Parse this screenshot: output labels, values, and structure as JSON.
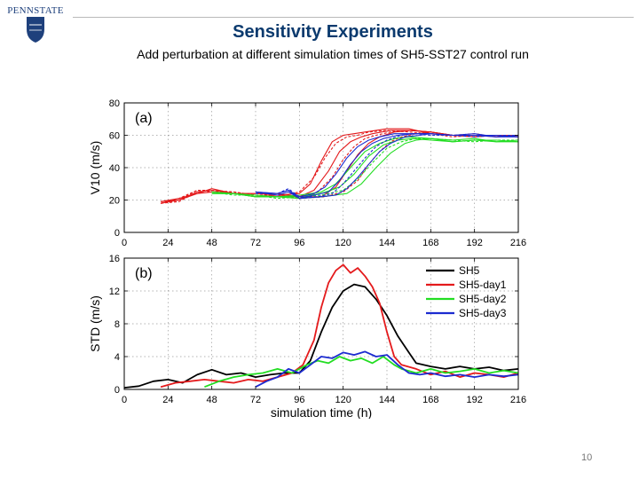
{
  "header": {
    "logo_text": "PENNSTATE",
    "title": "Sensitivity Experiments",
    "subtitle": "Add perturbation at different simulation times of SH5-SST27 control run"
  },
  "footer": {
    "page_number": "10"
  },
  "colors": {
    "title": "#0b3a6e",
    "logo": "#1e407c",
    "SH5": "#000000",
    "SH5-day1": "#e41a1c",
    "SH5-day2": "#22dd22",
    "SH5-day3": "#1c2bd0"
  },
  "chart_data": [
    {
      "type": "line",
      "panel_label": "(a)",
      "title": "",
      "xlabel": "",
      "ylabel": "V10 (m/s)",
      "xlim": [
        0,
        216
      ],
      "ylim": [
        0,
        80
      ],
      "xticks": [
        0,
        24,
        48,
        72,
        96,
        120,
        144,
        168,
        192,
        216
      ],
      "yticks": [
        0,
        20,
        40,
        60,
        80
      ],
      "grid": true,
      "series": [
        {
          "group": "SH5-day1",
          "style": "solid",
          "x": [
            20,
            30,
            40,
            48,
            60,
            72,
            84,
            96,
            102,
            108,
            114,
            120,
            126,
            132,
            144,
            156,
            168,
            180,
            192,
            204,
            216
          ],
          "y": [
            18,
            20,
            25,
            26,
            24,
            24,
            23,
            24,
            30,
            44,
            56,
            60,
            61,
            62,
            64,
            64,
            61,
            60,
            60,
            59,
            60
          ]
        },
        {
          "group": "SH5-day1",
          "style": "dashed",
          "x": [
            20,
            30,
            40,
            48,
            60,
            72,
            84,
            96,
            104,
            110,
            116,
            122,
            128,
            134,
            144,
            156,
            168,
            180,
            192,
            204,
            216
          ],
          "y": [
            18,
            21,
            26,
            25,
            25,
            23,
            22,
            25,
            34,
            46,
            55,
            59,
            60,
            62,
            63,
            62,
            61,
            59,
            60,
            60,
            59
          ]
        },
        {
          "group": "SH5-day1",
          "style": "solid",
          "x": [
            20,
            30,
            40,
            48,
            60,
            72,
            84,
            96,
            104,
            112,
            118,
            124,
            130,
            136,
            146,
            156,
            168,
            180,
            192,
            204,
            216
          ],
          "y": [
            19,
            20,
            24,
            27,
            24,
            24,
            24,
            22,
            26,
            38,
            50,
            56,
            59,
            61,
            63,
            63,
            62,
            60,
            59,
            60,
            59
          ]
        },
        {
          "group": "SH5-day1",
          "style": "dashed",
          "x": [
            20,
            30,
            40,
            48,
            60,
            72,
            84,
            96,
            106,
            114,
            120,
            126,
            132,
            138,
            146,
            156,
            168,
            180,
            192,
            204,
            216
          ],
          "y": [
            18,
            19,
            25,
            26,
            25,
            23,
            23,
            21,
            25,
            34,
            45,
            53,
            58,
            60,
            62,
            63,
            62,
            60,
            61,
            59,
            60
          ]
        },
        {
          "group": "SH5-day1",
          "style": "solid",
          "x": [
            20,
            30,
            40,
            48,
            60,
            72,
            84,
            96,
            108,
            116,
            122,
            128,
            134,
            140,
            148,
            158,
            168,
            180,
            192,
            204,
            216
          ],
          "y": [
            19,
            21,
            24,
            25,
            24,
            22,
            23,
            22,
            22,
            28,
            38,
            48,
            55,
            59,
            62,
            63,
            62,
            60,
            60,
            60,
            60
          ]
        },
        {
          "group": "SH5-day1",
          "style": "dashed",
          "x": [
            20,
            30,
            40,
            48,
            60,
            72,
            84,
            96,
            110,
            120,
            128,
            134,
            140,
            146,
            152,
            160,
            168,
            180,
            192,
            204,
            216
          ],
          "y": [
            18,
            20,
            26,
            26,
            24,
            23,
            22,
            21,
            22,
            25,
            32,
            42,
            50,
            56,
            59,
            61,
            62,
            60,
            59,
            60,
            59
          ]
        },
        {
          "group": "SH5-day2",
          "style": "solid",
          "x": [
            48,
            60,
            72,
            84,
            96,
            108,
            116,
            124,
            132,
            140,
            148,
            156,
            168,
            180,
            192,
            204,
            216
          ],
          "y": [
            25,
            24,
            23,
            22,
            23,
            25,
            30,
            40,
            50,
            55,
            58,
            59,
            58,
            57,
            58,
            56,
            57
          ]
        },
        {
          "group": "SH5-day2",
          "style": "solid",
          "x": [
            48,
            60,
            72,
            84,
            96,
            108,
            118,
            126,
            134,
            142,
            150,
            158,
            168,
            180,
            192,
            204,
            216
          ],
          "y": [
            24,
            24,
            22,
            22,
            22,
            24,
            28,
            36,
            47,
            54,
            57,
            58,
            57,
            56,
            57,
            57,
            56
          ]
        },
        {
          "group": "SH5-day2",
          "style": "dashed",
          "x": [
            48,
            60,
            72,
            84,
            96,
            108,
            120,
            128,
            136,
            144,
            152,
            160,
            168,
            180,
            192,
            204,
            216
          ],
          "y": [
            25,
            23,
            23,
            21,
            22,
            23,
            26,
            33,
            43,
            52,
            56,
            58,
            58,
            57,
            56,
            57,
            57
          ]
        },
        {
          "group": "SH5-day2",
          "style": "solid",
          "x": [
            48,
            60,
            72,
            84,
            96,
            108,
            122,
            130,
            138,
            146,
            154,
            160,
            168,
            180,
            192,
            204,
            216
          ],
          "y": [
            24,
            24,
            22,
            22,
            21,
            22,
            24,
            30,
            40,
            49,
            55,
            57,
            58,
            56,
            57,
            56,
            56
          ]
        },
        {
          "group": "SH5-day3",
          "style": "solid",
          "x": [
            72,
            84,
            90,
            96,
            104,
            110,
            116,
            122,
            128,
            134,
            140,
            148,
            156,
            168,
            180,
            192,
            204,
            216
          ],
          "y": [
            25,
            24,
            26,
            22,
            24,
            28,
            36,
            46,
            53,
            57,
            59,
            61,
            61,
            61,
            60,
            60,
            59,
            60
          ]
        },
        {
          "group": "SH5-day3",
          "style": "solid",
          "x": [
            72,
            84,
            90,
            96,
            104,
            112,
            118,
            124,
            130,
            136,
            142,
            150,
            158,
            168,
            180,
            192,
            204,
            216
          ],
          "y": [
            25,
            23,
            25,
            21,
            23,
            25,
            32,
            42,
            50,
            55,
            58,
            60,
            61,
            61,
            60,
            61,
            59,
            59
          ]
        },
        {
          "group": "SH5-day3",
          "style": "dashed",
          "x": [
            72,
            84,
            90,
            96,
            106,
            114,
            120,
            126,
            132,
            138,
            144,
            152,
            160,
            168,
            180,
            192,
            204,
            216
          ],
          "y": [
            24,
            24,
            27,
            22,
            22,
            24,
            30,
            38,
            46,
            53,
            57,
            60,
            61,
            60,
            60,
            59,
            60,
            60
          ]
        },
        {
          "group": "SH5-day3",
          "style": "solid",
          "x": [
            72,
            84,
            90,
            96,
            108,
            116,
            122,
            128,
            134,
            140,
            146,
            154,
            162,
            168,
            180,
            192,
            204,
            216
          ],
          "y": [
            25,
            24,
            26,
            21,
            22,
            23,
            27,
            34,
            42,
            50,
            55,
            59,
            60,
            61,
            60,
            60,
            60,
            59
          ]
        }
      ]
    },
    {
      "type": "line",
      "panel_label": "(b)",
      "title": "",
      "xlabel": "simulation time (h)",
      "ylabel": "STD (m/s)",
      "xlim": [
        0,
        216
      ],
      "ylim": [
        0,
        16
      ],
      "xticks": [
        0,
        24,
        48,
        72,
        96,
        120,
        144,
        168,
        192,
        216
      ],
      "yticks": [
        0,
        4,
        8,
        12,
        16
      ],
      "grid": true,
      "legend": {
        "position": "top-right",
        "entries": [
          "SH5",
          "SH5-day1",
          "SH5-day2",
          "SH5-day3"
        ]
      },
      "series": [
        {
          "name": "SH5",
          "x": [
            0,
            8,
            16,
            24,
            32,
            40,
            48,
            56,
            64,
            72,
            80,
            88,
            96,
            102,
            108,
            114,
            120,
            126,
            132,
            138,
            144,
            150,
            156,
            160,
            168,
            176,
            184,
            192,
            200,
            208,
            216
          ],
          "y": [
            0.2,
            0.4,
            1.0,
            1.2,
            0.8,
            1.8,
            2.4,
            1.8,
            2.0,
            1.5,
            1.8,
            2.0,
            2.0,
            3.5,
            7.0,
            10.0,
            12.0,
            12.8,
            12.5,
            11.0,
            9.0,
            6.5,
            4.5,
            3.2,
            2.8,
            2.5,
            2.8,
            2.5,
            2.7,
            2.3,
            2.5
          ]
        },
        {
          "name": "SH5-day1",
          "x": [
            20,
            28,
            36,
            44,
            52,
            60,
            68,
            76,
            84,
            92,
            98,
            104,
            108,
            112,
            116,
            120,
            124,
            128,
            132,
            136,
            140,
            144,
            148,
            152,
            160,
            168,
            176,
            184,
            192,
            200,
            208,
            216
          ],
          "y": [
            0.3,
            0.8,
            1.0,
            1.2,
            1.0,
            0.8,
            1.2,
            1.0,
            1.5,
            2.0,
            3.0,
            6.0,
            10.0,
            13.0,
            14.5,
            15.2,
            14.2,
            14.8,
            13.8,
            12.5,
            10.5,
            7.0,
            4.0,
            3.0,
            2.5,
            1.8,
            2.2,
            1.5,
            2.0,
            1.8,
            1.5,
            2.0
          ]
        },
        {
          "name": "SH5-day2",
          "x": [
            44,
            52,
            60,
            68,
            76,
            84,
            92,
            100,
            106,
            112,
            118,
            124,
            130,
            136,
            142,
            148,
            152,
            160,
            168,
            176,
            184,
            192,
            200,
            208,
            216
          ],
          "y": [
            0.3,
            1.0,
            1.5,
            1.8,
            2.0,
            2.5,
            2.0,
            3.0,
            3.5,
            3.2,
            4.0,
            3.5,
            3.8,
            3.2,
            4.0,
            3.0,
            2.5,
            2.0,
            2.5,
            2.0,
            2.2,
            2.5,
            2.0,
            2.3,
            2.0
          ]
        },
        {
          "name": "SH5-day3",
          "x": [
            72,
            78,
            84,
            90,
            96,
            102,
            108,
            114,
            120,
            126,
            132,
            138,
            144,
            150,
            156,
            162,
            168,
            176,
            184,
            192,
            200,
            208,
            216
          ],
          "y": [
            0.3,
            1.0,
            1.5,
            2.5,
            2.0,
            3.0,
            4.0,
            3.8,
            4.5,
            4.2,
            4.6,
            4.0,
            4.2,
            3.0,
            2.0,
            1.8,
            2.0,
            1.6,
            1.8,
            1.5,
            1.8,
            1.6,
            1.8
          ]
        }
      ]
    }
  ]
}
